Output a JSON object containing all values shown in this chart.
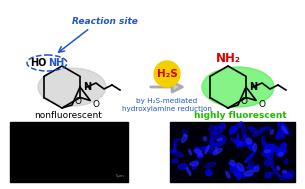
{
  "bg_color": "#ffffff",
  "reaction_site_text": "Reaction site",
  "reaction_site_color": "#2255cc",
  "arrow_subtext": "by H₂S-mediated\nhydroxylamine reduction",
  "arrow_color": "#aaaaaa",
  "hs_bg": "#f5d000",
  "hs_text_color": "#dd0000",
  "left_label": "nonfluorescent",
  "left_label_color": "#000000",
  "right_label": "highly fluorescent",
  "right_label_color": "#22bb00",
  "nh2_color": "#dd0000",
  "molecule_gray": "#c0c0c0",
  "molecule_green": "#44ee44",
  "dashed_circle_color": "#2255cc",
  "arrow_text_color": "#2255cc"
}
